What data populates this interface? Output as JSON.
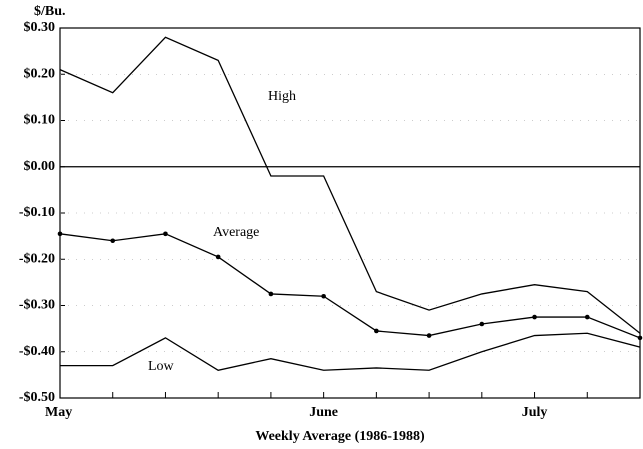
{
  "chart_data": {
    "type": "line",
    "y_label": "$/Bu.",
    "x_label": "Weekly Average (1986-1988)",
    "categories": [
      "May",
      null,
      null,
      null,
      null,
      "June",
      null,
      null,
      null,
      "July",
      null,
      null
    ],
    "series": [
      {
        "name": "High",
        "color": "#000000",
        "markers": false,
        "values": [
          0.21,
          0.16,
          0.28,
          0.23,
          -0.02,
          -0.02,
          -0.27,
          -0.31,
          -0.275,
          -0.255,
          -0.27,
          -0.36
        ]
      },
      {
        "name": "Average",
        "color": "#000000",
        "markers": true,
        "values": [
          -0.145,
          -0.16,
          -0.145,
          -0.195,
          -0.275,
          -0.28,
          -0.355,
          -0.365,
          -0.34,
          -0.325,
          -0.325,
          -0.37
        ]
      },
      {
        "name": "Low",
        "color": "#000000",
        "markers": false,
        "values": [
          -0.43,
          -0.43,
          -0.37,
          -0.44,
          -0.415,
          -0.44,
          -0.435,
          -0.44,
          -0.4,
          -0.365,
          -0.36,
          -0.39
        ]
      }
    ],
    "ylim": [
      -0.5,
      0.3
    ],
    "yticks": [
      {
        "value": 0.3,
        "label": "$0.30"
      },
      {
        "value": 0.2,
        "label": "$0.20"
      },
      {
        "value": 0.1,
        "label": "$0.10"
      },
      {
        "value": 0,
        "label": "$0.00"
      },
      {
        "value": -0.1,
        "label": "-$0.10"
      },
      {
        "value": -0.2,
        "label": "-$0.20"
      },
      {
        "value": -0.3,
        "label": "-$0.30"
      },
      {
        "value": -0.4,
        "label": "-$0.40"
      },
      {
        "value": -0.5,
        "label": "-$0.50"
      }
    ],
    "grid": true
  }
}
